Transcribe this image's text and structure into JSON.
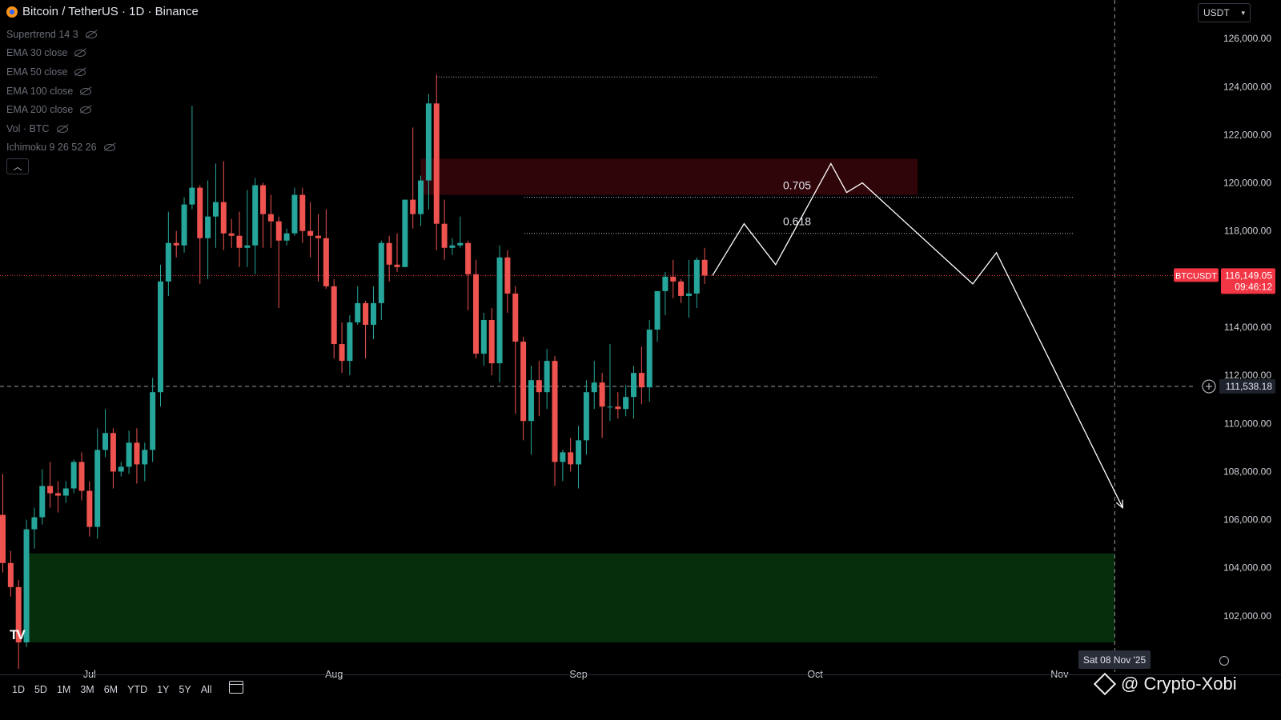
{
  "header": {
    "symbol_title": "Bitcoin / TetherUS · 1D · Binance"
  },
  "indicators": [
    "Supertrend 14 3",
    "EMA 30 close",
    "EMA 50 close",
    "EMA 100 close",
    "EMA 200 close",
    "Vol · BTC",
    "Ichimoku 9 26 52 26"
  ],
  "currency_select": "USDT",
  "price_axis": {
    "ticks": [
      "126,000.00",
      "124,000.00",
      "122,000.00",
      "120,000.00",
      "118,000.00",
      "114,000.00",
      "112,000.00",
      "110,000.00",
      "108,000.00",
      "106,000.00",
      "104,000.00",
      "102,000.00"
    ]
  },
  "last_price": {
    "label": "BTCUSDT",
    "price": "116,149.05",
    "countdown": "09:46:12"
  },
  "crosshair": {
    "price": "111,538.18",
    "date": "Sat 08 Nov '25"
  },
  "time_axis": {
    "labels": [
      "Jul",
      "Aug",
      "Sep",
      "Oct",
      "Nov"
    ]
  },
  "toolbar": {
    "timeframes": [
      "1D",
      "5D",
      "1M",
      "3M",
      "6M",
      "YTD",
      "1Y",
      "5Y",
      "All"
    ]
  },
  "watermark": "@ Crypto-Xobi",
  "colors": {
    "up": "#26a69a",
    "down": "#ef5350",
    "resistance_zone": "#300509",
    "support_zone": "#072e0c",
    "crosshair": "#9598a1"
  },
  "chart_data": {
    "type": "candlestick",
    "ylim": [
      100600,
      127600
    ],
    "x_axis": "date",
    "candles": [
      {
        "d": "2025-06-20",
        "o": 106200,
        "h": 107900,
        "l": 103800,
        "c": 104200
      },
      {
        "d": "2025-06-21",
        "o": 104200,
        "h": 104700,
        "l": 102800,
        "c": 103200
      },
      {
        "d": "2025-06-22",
        "o": 103200,
        "h": 103500,
        "l": 99800,
        "c": 100900
      },
      {
        "d": "2025-06-23",
        "o": 100900,
        "h": 106000,
        "l": 100700,
        "c": 105600
      },
      {
        "d": "2025-06-24",
        "o": 105600,
        "h": 106500,
        "l": 104800,
        "c": 106100
      },
      {
        "d": "2025-06-25",
        "o": 106100,
        "h": 108100,
        "l": 105800,
        "c": 107400
      },
      {
        "d": "2025-06-26",
        "o": 107400,
        "h": 108400,
        "l": 106500,
        "c": 107100
      },
      {
        "d": "2025-06-27",
        "o": 107100,
        "h": 107600,
        "l": 106300,
        "c": 107000
      },
      {
        "d": "2025-06-28",
        "o": 107000,
        "h": 107600,
        "l": 106700,
        "c": 107300
      },
      {
        "d": "2025-06-29",
        "o": 107300,
        "h": 108500,
        "l": 107100,
        "c": 108400
      },
      {
        "d": "2025-06-30",
        "o": 108400,
        "h": 108800,
        "l": 106800,
        "c": 107200
      },
      {
        "d": "2025-07-01",
        "o": 107200,
        "h": 107600,
        "l": 105300,
        "c": 105700
      },
      {
        "d": "2025-07-02",
        "o": 105700,
        "h": 109800,
        "l": 105200,
        "c": 108900
      },
      {
        "d": "2025-07-03",
        "o": 108900,
        "h": 110600,
        "l": 108600,
        "c": 109600
      },
      {
        "d": "2025-07-04",
        "o": 109600,
        "h": 109800,
        "l": 107300,
        "c": 108000
      },
      {
        "d": "2025-07-05",
        "o": 108000,
        "h": 108400,
        "l": 107800,
        "c": 108200
      },
      {
        "d": "2025-07-06",
        "o": 108200,
        "h": 109700,
        "l": 107900,
        "c": 109200
      },
      {
        "d": "2025-07-07",
        "o": 109200,
        "h": 109800,
        "l": 107500,
        "c": 108300
      },
      {
        "d": "2025-07-08",
        "o": 108300,
        "h": 109200,
        "l": 107600,
        "c": 108900
      },
      {
        "d": "2025-07-09",
        "o": 108900,
        "h": 111900,
        "l": 108400,
        "c": 111300
      },
      {
        "d": "2025-07-10",
        "o": 111300,
        "h": 116600,
        "l": 110700,
        "c": 115900
      },
      {
        "d": "2025-07-11",
        "o": 115900,
        "h": 118800,
        "l": 115300,
        "c": 117500
      },
      {
        "d": "2025-07-12",
        "o": 117500,
        "h": 118000,
        "l": 116900,
        "c": 117400
      },
      {
        "d": "2025-07-13",
        "o": 117400,
        "h": 119400,
        "l": 117100,
        "c": 119100
      },
      {
        "d": "2025-07-14",
        "o": 119100,
        "h": 123200,
        "l": 118900,
        "c": 119800
      },
      {
        "d": "2025-07-15",
        "o": 119800,
        "h": 119900,
        "l": 115800,
        "c": 117700
      },
      {
        "d": "2025-07-16",
        "o": 117700,
        "h": 120100,
        "l": 116000,
        "c": 118600
      },
      {
        "d": "2025-07-17",
        "o": 118600,
        "h": 120800,
        "l": 117300,
        "c": 119200
      },
      {
        "d": "2025-07-18",
        "o": 119200,
        "h": 120900,
        "l": 117200,
        "c": 117900
      },
      {
        "d": "2025-07-19",
        "o": 117900,
        "h": 118500,
        "l": 117300,
        "c": 117800
      },
      {
        "d": "2025-07-20",
        "o": 117800,
        "h": 118800,
        "l": 116500,
        "c": 117300
      },
      {
        "d": "2025-07-21",
        "o": 117300,
        "h": 119700,
        "l": 116500,
        "c": 117400
      },
      {
        "d": "2025-07-22",
        "o": 117400,
        "h": 120200,
        "l": 116200,
        "c": 119900
      },
      {
        "d": "2025-07-23",
        "o": 119900,
        "h": 120000,
        "l": 117300,
        "c": 118700
      },
      {
        "d": "2025-07-24",
        "o": 118700,
        "h": 119500,
        "l": 117300,
        "c": 118400
      },
      {
        "d": "2025-07-25",
        "o": 118400,
        "h": 118600,
        "l": 114800,
        "c": 117600
      },
      {
        "d": "2025-07-26",
        "o": 117600,
        "h": 118100,
        "l": 117400,
        "c": 117900
      },
      {
        "d": "2025-07-27",
        "o": 117900,
        "h": 119800,
        "l": 117800,
        "c": 119500
      },
      {
        "d": "2025-07-28",
        "o": 119500,
        "h": 119800,
        "l": 117500,
        "c": 118000
      },
      {
        "d": "2025-07-29",
        "o": 118000,
        "h": 119200,
        "l": 116900,
        "c": 117800
      },
      {
        "d": "2025-07-30",
        "o": 117800,
        "h": 118700,
        "l": 115900,
        "c": 117700
      },
      {
        "d": "2025-07-31",
        "o": 117700,
        "h": 118900,
        "l": 115600,
        "c": 115700
      },
      {
        "d": "2025-08-01",
        "o": 115700,
        "h": 116000,
        "l": 112700,
        "c": 113300
      },
      {
        "d": "2025-08-02",
        "o": 113300,
        "h": 114200,
        "l": 112100,
        "c": 112600
      },
      {
        "d": "2025-08-03",
        "o": 112600,
        "h": 114500,
        "l": 112000,
        "c": 114200
      },
      {
        "d": "2025-08-04",
        "o": 114200,
        "h": 115700,
        "l": 114100,
        "c": 115000
      },
      {
        "d": "2025-08-05",
        "o": 115000,
        "h": 115100,
        "l": 112700,
        "c": 114100
      },
      {
        "d": "2025-08-06",
        "o": 114100,
        "h": 115700,
        "l": 113500,
        "c": 115000
      },
      {
        "d": "2025-08-07",
        "o": 115000,
        "h": 117600,
        "l": 114300,
        "c": 117500
      },
      {
        "d": "2025-08-08",
        "o": 117500,
        "h": 117800,
        "l": 115900,
        "c": 116600
      },
      {
        "d": "2025-08-09",
        "o": 116600,
        "h": 117900,
        "l": 116300,
        "c": 116500
      },
      {
        "d": "2025-08-10",
        "o": 116500,
        "h": 119300,
        "l": 116500,
        "c": 119300
      },
      {
        "d": "2025-08-11",
        "o": 119300,
        "h": 122300,
        "l": 118100,
        "c": 118700
      },
      {
        "d": "2025-08-12",
        "o": 118700,
        "h": 120300,
        "l": 118200,
        "c": 120100
      },
      {
        "d": "2025-08-13",
        "o": 120100,
        "h": 123700,
        "l": 118900,
        "c": 123300
      },
      {
        "d": "2025-08-14",
        "o": 123300,
        "h": 124500,
        "l": 117200,
        "c": 118300
      },
      {
        "d": "2025-08-15",
        "o": 118300,
        "h": 119300,
        "l": 116800,
        "c": 117300
      },
      {
        "d": "2025-08-16",
        "o": 117300,
        "h": 117700,
        "l": 117000,
        "c": 117400
      },
      {
        "d": "2025-08-17",
        "o": 117400,
        "h": 118600,
        "l": 117300,
        "c": 117500
      },
      {
        "d": "2025-08-18",
        "o": 117500,
        "h": 117600,
        "l": 114700,
        "c": 116200
      },
      {
        "d": "2025-08-19",
        "o": 116200,
        "h": 116800,
        "l": 112700,
        "c": 112900
      },
      {
        "d": "2025-08-20",
        "o": 112900,
        "h": 114600,
        "l": 112400,
        "c": 114300
      },
      {
        "d": "2025-08-21",
        "o": 114300,
        "h": 114800,
        "l": 112000,
        "c": 112500
      },
      {
        "d": "2025-08-22",
        "o": 112500,
        "h": 117400,
        "l": 111700,
        "c": 116900
      },
      {
        "d": "2025-08-23",
        "o": 116900,
        "h": 117200,
        "l": 114600,
        "c": 115400
      },
      {
        "d": "2025-08-24",
        "o": 115400,
        "h": 115700,
        "l": 110400,
        "c": 113400
      },
      {
        "d": "2025-08-25",
        "o": 113400,
        "h": 113600,
        "l": 109300,
        "c": 110100
      },
      {
        "d": "2025-08-26",
        "o": 110100,
        "h": 112400,
        "l": 108700,
        "c": 111800
      },
      {
        "d": "2025-08-27",
        "o": 111800,
        "h": 112600,
        "l": 110300,
        "c": 111300
      },
      {
        "d": "2025-08-28",
        "o": 111300,
        "h": 113100,
        "l": 110600,
        "c": 112600
      },
      {
        "d": "2025-08-29",
        "o": 112600,
        "h": 112800,
        "l": 107400,
        "c": 108400
      },
      {
        "d": "2025-08-30",
        "o": 108400,
        "h": 108900,
        "l": 107600,
        "c": 108800
      },
      {
        "d": "2025-08-31",
        "o": 108800,
        "h": 109400,
        "l": 108000,
        "c": 108300
      },
      {
        "d": "2025-09-01",
        "o": 108300,
        "h": 109900,
        "l": 107300,
        "c": 109300
      },
      {
        "d": "2025-09-02",
        "o": 109300,
        "h": 111800,
        "l": 108700,
        "c": 111300
      },
      {
        "d": "2025-09-03",
        "o": 111300,
        "h": 112600,
        "l": 110600,
        "c": 111700
      },
      {
        "d": "2025-09-04",
        "o": 111700,
        "h": 112100,
        "l": 109400,
        "c": 110700
      },
      {
        "d": "2025-09-05",
        "o": 110700,
        "h": 113300,
        "l": 110100,
        "c": 110700
      },
      {
        "d": "2025-09-06",
        "o": 110700,
        "h": 111300,
        "l": 110200,
        "c": 110600
      },
      {
        "d": "2025-09-07",
        "o": 110600,
        "h": 111600,
        "l": 110300,
        "c": 111100
      },
      {
        "d": "2025-09-08",
        "o": 111100,
        "h": 112400,
        "l": 110200,
        "c": 112100
      },
      {
        "d": "2025-09-09",
        "o": 112100,
        "h": 113200,
        "l": 110800,
        "c": 111500
      },
      {
        "d": "2025-09-10",
        "o": 111500,
        "h": 114300,
        "l": 110900,
        "c": 113900
      },
      {
        "d": "2025-09-11",
        "o": 113900,
        "h": 115500,
        "l": 113400,
        "c": 115500
      },
      {
        "d": "2025-09-12",
        "o": 115500,
        "h": 116300,
        "l": 114500,
        "c": 116100
      },
      {
        "d": "2025-09-13",
        "o": 116100,
        "h": 116800,
        "l": 115200,
        "c": 115900
      },
      {
        "d": "2025-09-14",
        "o": 115900,
        "h": 116000,
        "l": 115000,
        "c": 115300
      },
      {
        "d": "2025-09-15",
        "o": 115300,
        "h": 116800,
        "l": 114400,
        "c": 115400
      },
      {
        "d": "2025-09-16",
        "o": 115400,
        "h": 116900,
        "l": 114800,
        "c": 116800
      },
      {
        "d": "2025-09-17",
        "o": 116800,
        "h": 117300,
        "l": 115800,
        "c": 116149
      }
    ],
    "projection": [
      {
        "d": "2025-09-18",
        "p": 116150
      },
      {
        "d": "2025-09-22",
        "p": 118300
      },
      {
        "d": "2025-09-26",
        "p": 116600
      },
      {
        "d": "2025-10-03",
        "p": 120800
      },
      {
        "d": "2025-10-05",
        "p": 119600
      },
      {
        "d": "2025-10-07",
        "p": 120000
      },
      {
        "d": "2025-10-21",
        "p": 115800
      },
      {
        "d": "2025-10-24",
        "p": 117100
      },
      {
        "d": "2025-11-09",
        "p": 106500
      }
    ],
    "fib_levels": [
      {
        "label": "0.705",
        "value": 119400
      },
      {
        "label": "0.618",
        "value": 117900
      }
    ],
    "high_line": {
      "value": 124400,
      "from": "2025-08-14",
      "to": "2025-10-09"
    },
    "resistance_zone": {
      "from": "2025-08-12",
      "to": "2025-10-14",
      "top": 121000,
      "bottom": 119500
    },
    "support_zone": {
      "from": "2025-06-23",
      "to": "2025-11-08",
      "top": 104600,
      "bottom": 100900
    },
    "crosshair_price": 111538.18,
    "crosshair_date": "2025-11-08",
    "last_close": 116149.05
  }
}
